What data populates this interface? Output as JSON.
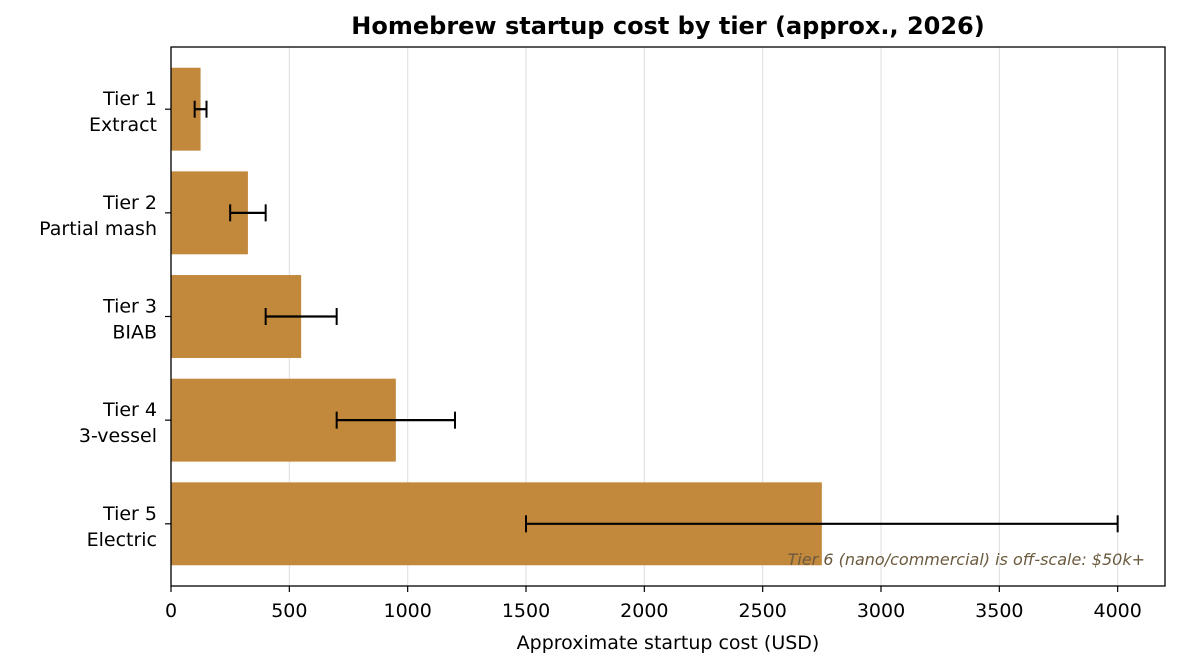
{
  "chart_data": {
    "type": "bar",
    "orientation": "horizontal",
    "title": "Homebrew startup cost by tier (approx., 2026)",
    "xlabel": "Approximate startup cost (USD)",
    "ylabel": "",
    "xlim": [
      0,
      4200
    ],
    "x_ticks": [
      0,
      500,
      1000,
      1500,
      2000,
      2500,
      3000,
      3500,
      4000
    ],
    "grid": "x",
    "categories": [
      {
        "line1": "Tier 1",
        "line2": "Extract"
      },
      {
        "line1": "Tier 2",
        "line2": "Partial mash"
      },
      {
        "line1": "Tier 3",
        "line2": "BIAB"
      },
      {
        "line1": "Tier 4",
        "line2": "3-vessel"
      },
      {
        "line1": "Tier 5",
        "line2": "Electric"
      }
    ],
    "values": [
      125,
      325,
      550,
      950,
      2750
    ],
    "error_ranges": [
      [
        100,
        150
      ],
      [
        250,
        400
      ],
      [
        400,
        700
      ],
      [
        700,
        1200
      ],
      [
        1500,
        4000
      ]
    ],
    "bar_color": "#c2883c",
    "error_color": "#000000",
    "annotation": {
      "text": "Tier 6 (nano/commercial) is off-scale: $50k+",
      "color": "#6b5a3e",
      "placement": "bottom-right"
    }
  }
}
